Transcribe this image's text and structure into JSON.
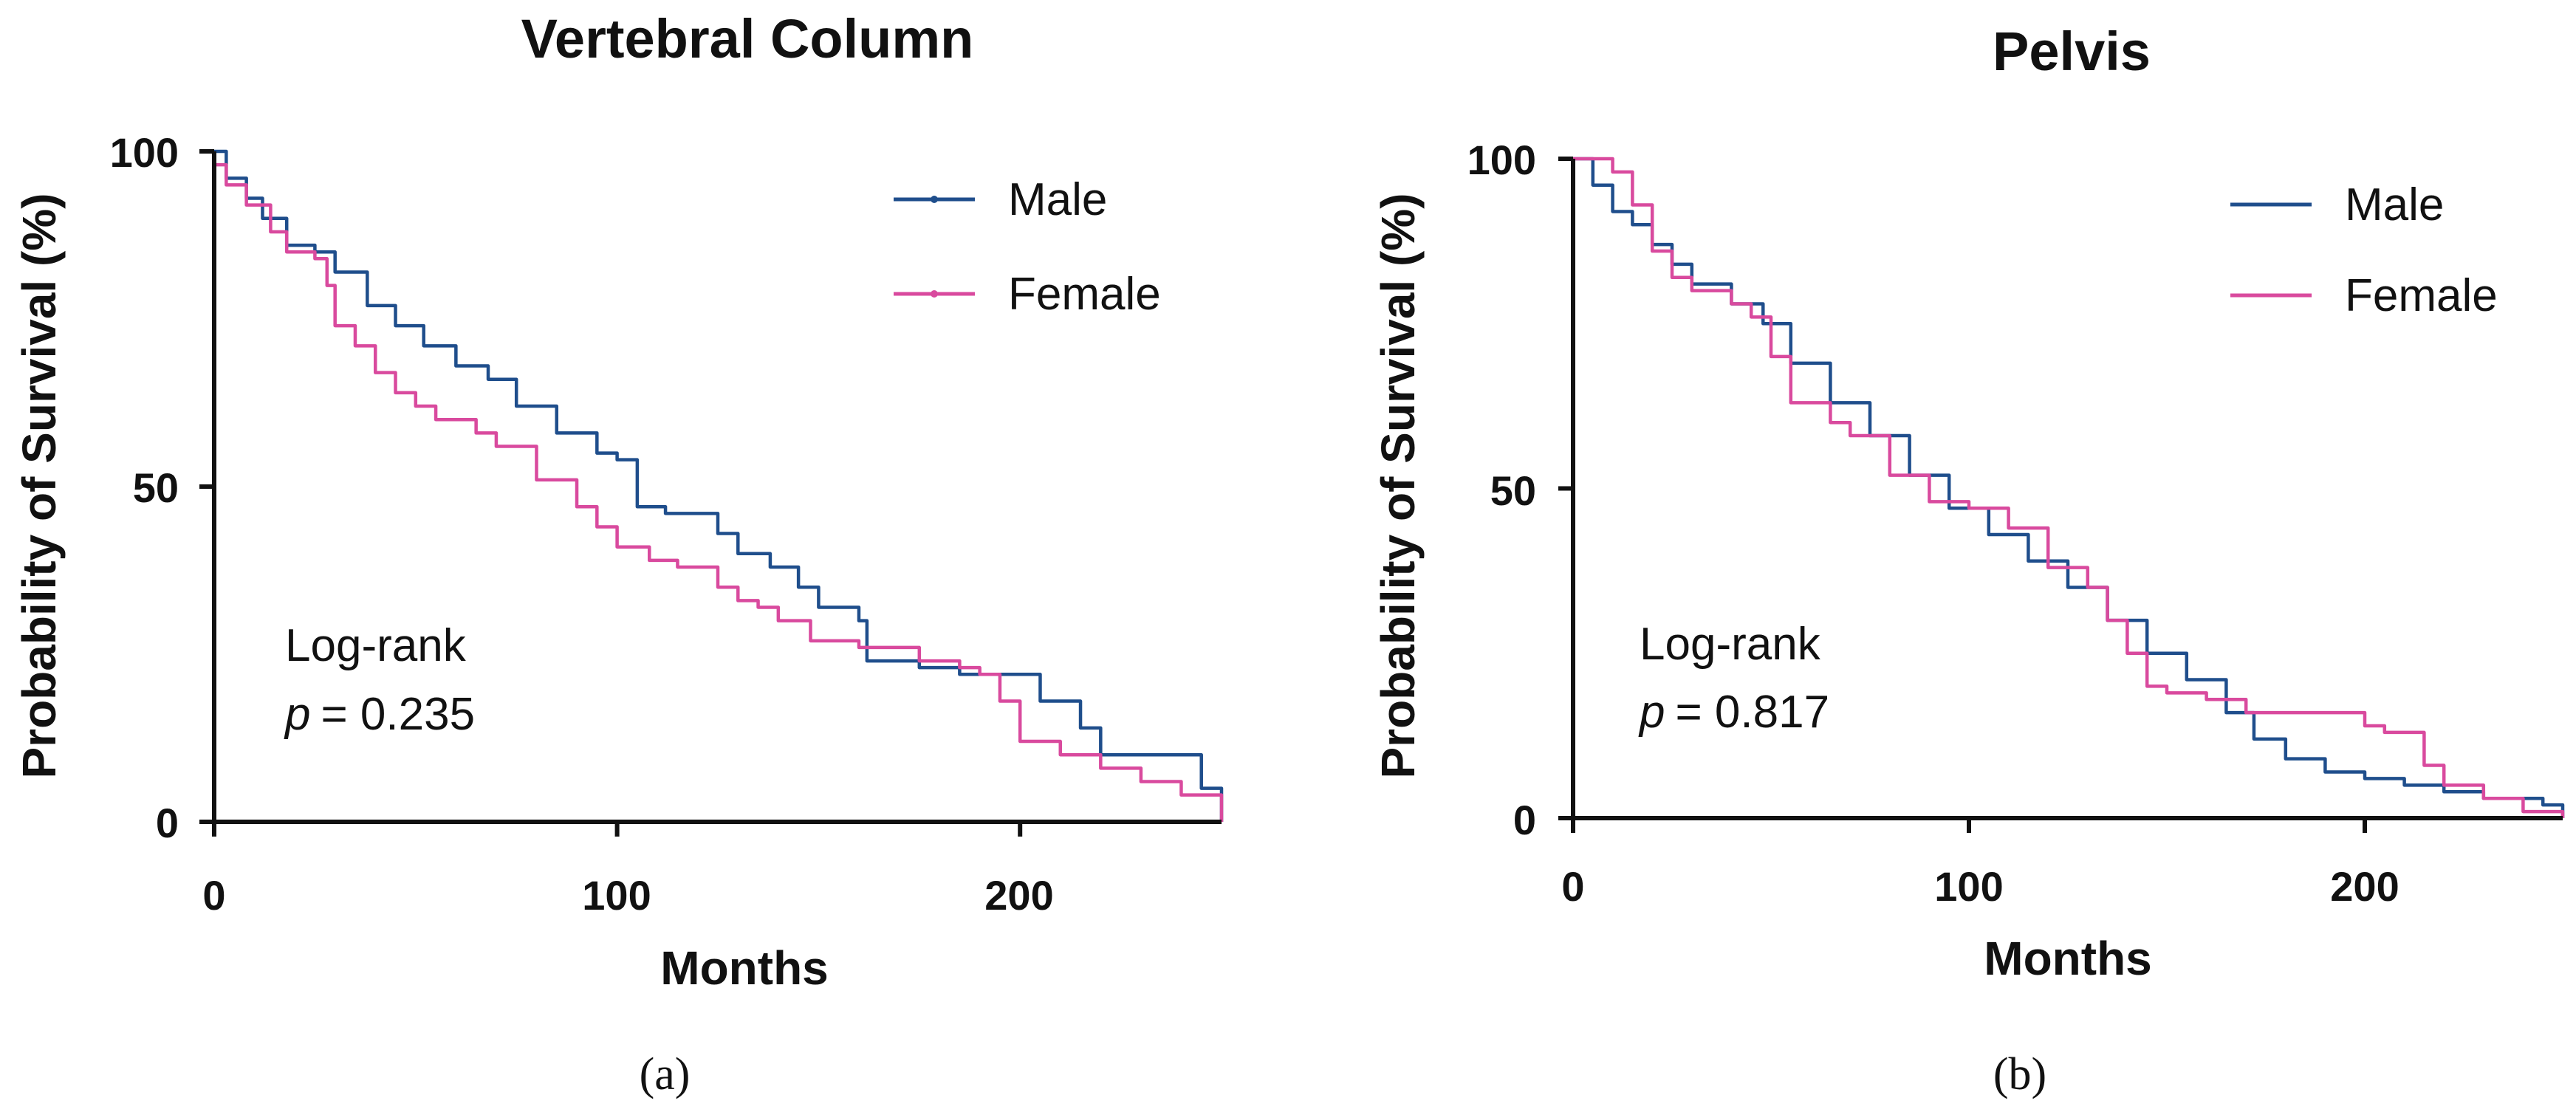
{
  "chart_data": [
    {
      "type": "line",
      "panel": "(a)",
      "title": "Vertebral Column",
      "xlabel": "Months",
      "ylabel": "Probability of Survival (%)",
      "xlim": [
        0,
        250
      ],
      "ylim": [
        0,
        100
      ],
      "xticks": [
        0,
        100,
        200
      ],
      "yticks": [
        0,
        50,
        100
      ],
      "legend_position": "top-right",
      "annotation": {
        "line1": "Log-rank",
        "p_symbol": "p",
        "p_value": "= 0.235"
      },
      "series": [
        {
          "name": "Male",
          "color": "#1f4e8c",
          "x": [
            0,
            3,
            8,
            12,
            18,
            25,
            30,
            38,
            45,
            52,
            60,
            68,
            75,
            85,
            95,
            100,
            105,
            112,
            125,
            130,
            138,
            145,
            150,
            160,
            162,
            175,
            185,
            190,
            205,
            215,
            220,
            238,
            245,
            250
          ],
          "y": [
            100,
            96,
            93,
            90,
            86,
            85,
            82,
            77,
            74,
            71,
            68,
            66,
            62,
            58,
            55,
            54,
            47,
            46,
            43,
            40,
            38,
            35,
            32,
            30,
            24,
            23,
            22,
            22,
            18,
            14,
            10,
            10,
            5,
            0
          ]
        },
        {
          "name": "Female",
          "color": "#d94a9e",
          "x": [
            0,
            3,
            8,
            14,
            18,
            25,
            28,
            30,
            35,
            40,
            45,
            50,
            55,
            65,
            70,
            80,
            90,
            95,
            100,
            108,
            115,
            125,
            130,
            135,
            140,
            148,
            160,
            175,
            185,
            190,
            195,
            200,
            210,
            220,
            230,
            240,
            250
          ],
          "y": [
            98,
            95,
            92,
            88,
            85,
            84,
            80,
            74,
            71,
            67,
            64,
            62,
            60,
            58,
            56,
            51,
            47,
            44,
            41,
            39,
            38,
            35,
            33,
            32,
            30,
            27,
            26,
            24,
            23,
            22,
            18,
            12,
            10,
            8,
            6,
            4,
            0
          ]
        }
      ]
    },
    {
      "type": "line",
      "panel": "(b)",
      "title": "Pelvis",
      "xlabel": "Months",
      "ylabel": "Probability of Survival (%)",
      "xlim": [
        0,
        250
      ],
      "ylim": [
        0,
        100
      ],
      "xticks": [
        0,
        100,
        200
      ],
      "yticks": [
        0,
        50,
        100
      ],
      "legend_position": "top-right",
      "annotation": {
        "line1": "Log-rank",
        "p_symbol": "p",
        "p_value": "= 0.817"
      },
      "series": [
        {
          "name": "Male",
          "color": "#1f4e8c",
          "x": [
            0,
            5,
            10,
            15,
            20,
            25,
            30,
            40,
            48,
            55,
            65,
            75,
            85,
            95,
            105,
            115,
            125,
            135,
            145,
            155,
            165,
            172,
            180,
            190,
            200,
            210,
            220,
            230,
            245,
            250
          ],
          "y": [
            100,
            96,
            92,
            90,
            87,
            84,
            81,
            78,
            75,
            69,
            63,
            58,
            52,
            47,
            43,
            39,
            35,
            30,
            25,
            21,
            16,
            12,
            9,
            7,
            6,
            5,
            4,
            3,
            2,
            0
          ]
        },
        {
          "name": "Female",
          "color": "#d94a9e",
          "x": [
            0,
            5,
            10,
            15,
            20,
            25,
            30,
            40,
            45,
            50,
            55,
            65,
            70,
            80,
            90,
            100,
            110,
            120,
            130,
            135,
            140,
            145,
            150,
            160,
            170,
            180,
            190,
            200,
            205,
            210,
            215,
            220,
            230,
            240,
            250
          ],
          "y": [
            100,
            100,
            98,
            93,
            86,
            82,
            80,
            78,
            76,
            70,
            63,
            60,
            58,
            52,
            48,
            47,
            44,
            38,
            35,
            30,
            25,
            20,
            19,
            18,
            16,
            16,
            16,
            14,
            13,
            13,
            8,
            5,
            3,
            1,
            0
          ]
        }
      ]
    }
  ]
}
